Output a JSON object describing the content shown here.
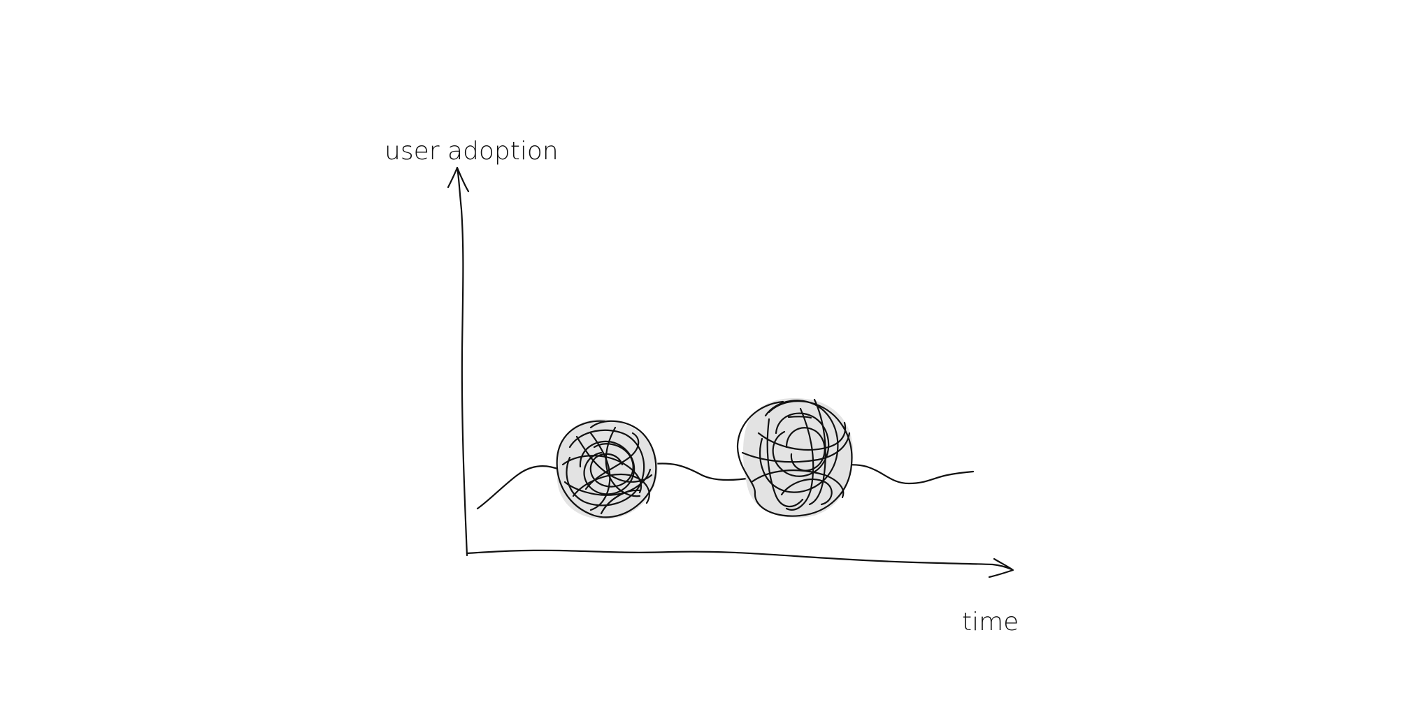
{
  "diagram": {
    "y_axis_label": "user adoption",
    "x_axis_label": "time"
  },
  "colors": {
    "ink": "#111111",
    "scribble_fill": "#e3e3e3",
    "background": "#ffffff"
  }
}
